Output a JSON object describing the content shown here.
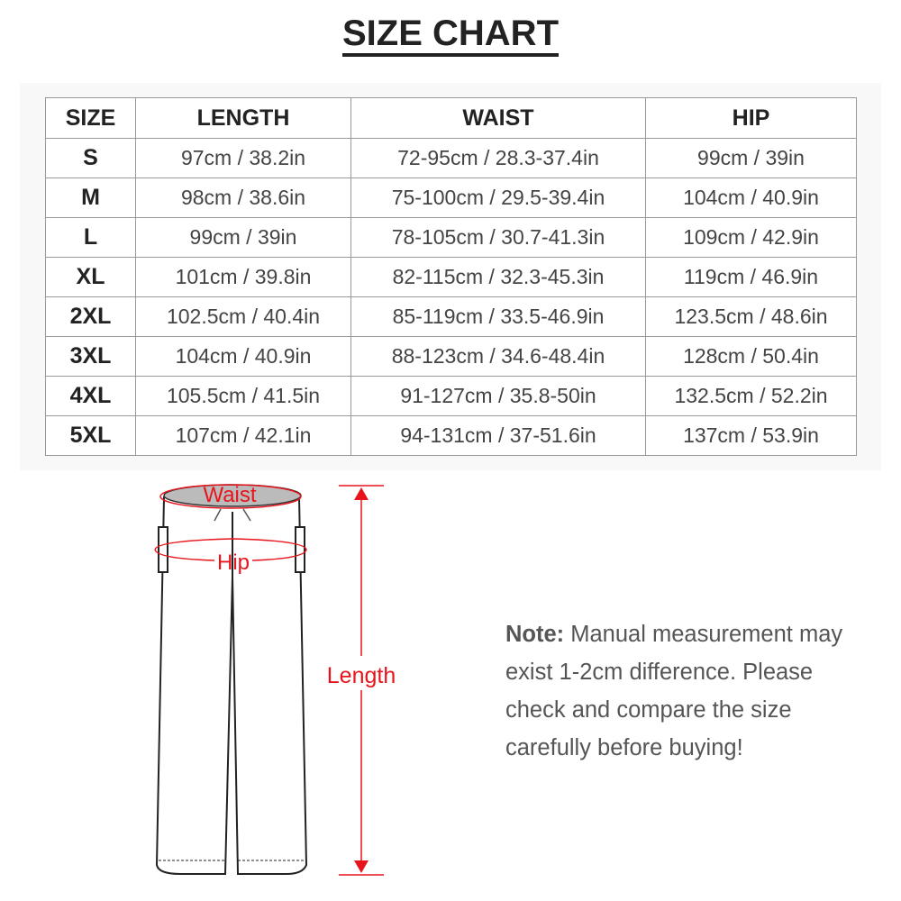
{
  "title": "SIZE CHART",
  "table": {
    "headers": [
      "SIZE",
      "LENGTH",
      "WAIST",
      "HIP"
    ],
    "rows": [
      [
        "S",
        "97cm / 38.2in",
        "72-95cm / 28.3-37.4in",
        "99cm / 39in"
      ],
      [
        "M",
        "98cm / 38.6in",
        "75-100cm / 29.5-39.4in",
        "104cm / 40.9in"
      ],
      [
        "L",
        "99cm / 39in",
        "78-105cm / 30.7-41.3in",
        "109cm / 42.9in"
      ],
      [
        "XL",
        "101cm / 39.8in",
        "82-115cm / 32.3-45.3in",
        "119cm / 46.9in"
      ],
      [
        "2XL",
        "102.5cm / 40.4in",
        "85-119cm / 33.5-46.9in",
        "123.5cm / 48.6in"
      ],
      [
        "3XL",
        "104cm / 40.9in",
        "88-123cm / 34.6-48.4in",
        "128cm / 50.4in"
      ],
      [
        "4XL",
        "105.5cm / 41.5in",
        "91-127cm / 35.8-50in",
        "132.5cm / 52.2in"
      ],
      [
        "5XL",
        "107cm / 42.1in",
        "94-131cm / 37-51.6in",
        "137cm / 53.9in"
      ]
    ]
  },
  "diagram": {
    "waist_label": "Waist",
    "hip_label": "Hip",
    "length_label": "Length",
    "accent": "#e8141c"
  },
  "note": {
    "label": "Note:",
    "text": " Manual measurement may exist 1-2cm difference. Please check and compare the size carefully before buying!"
  }
}
